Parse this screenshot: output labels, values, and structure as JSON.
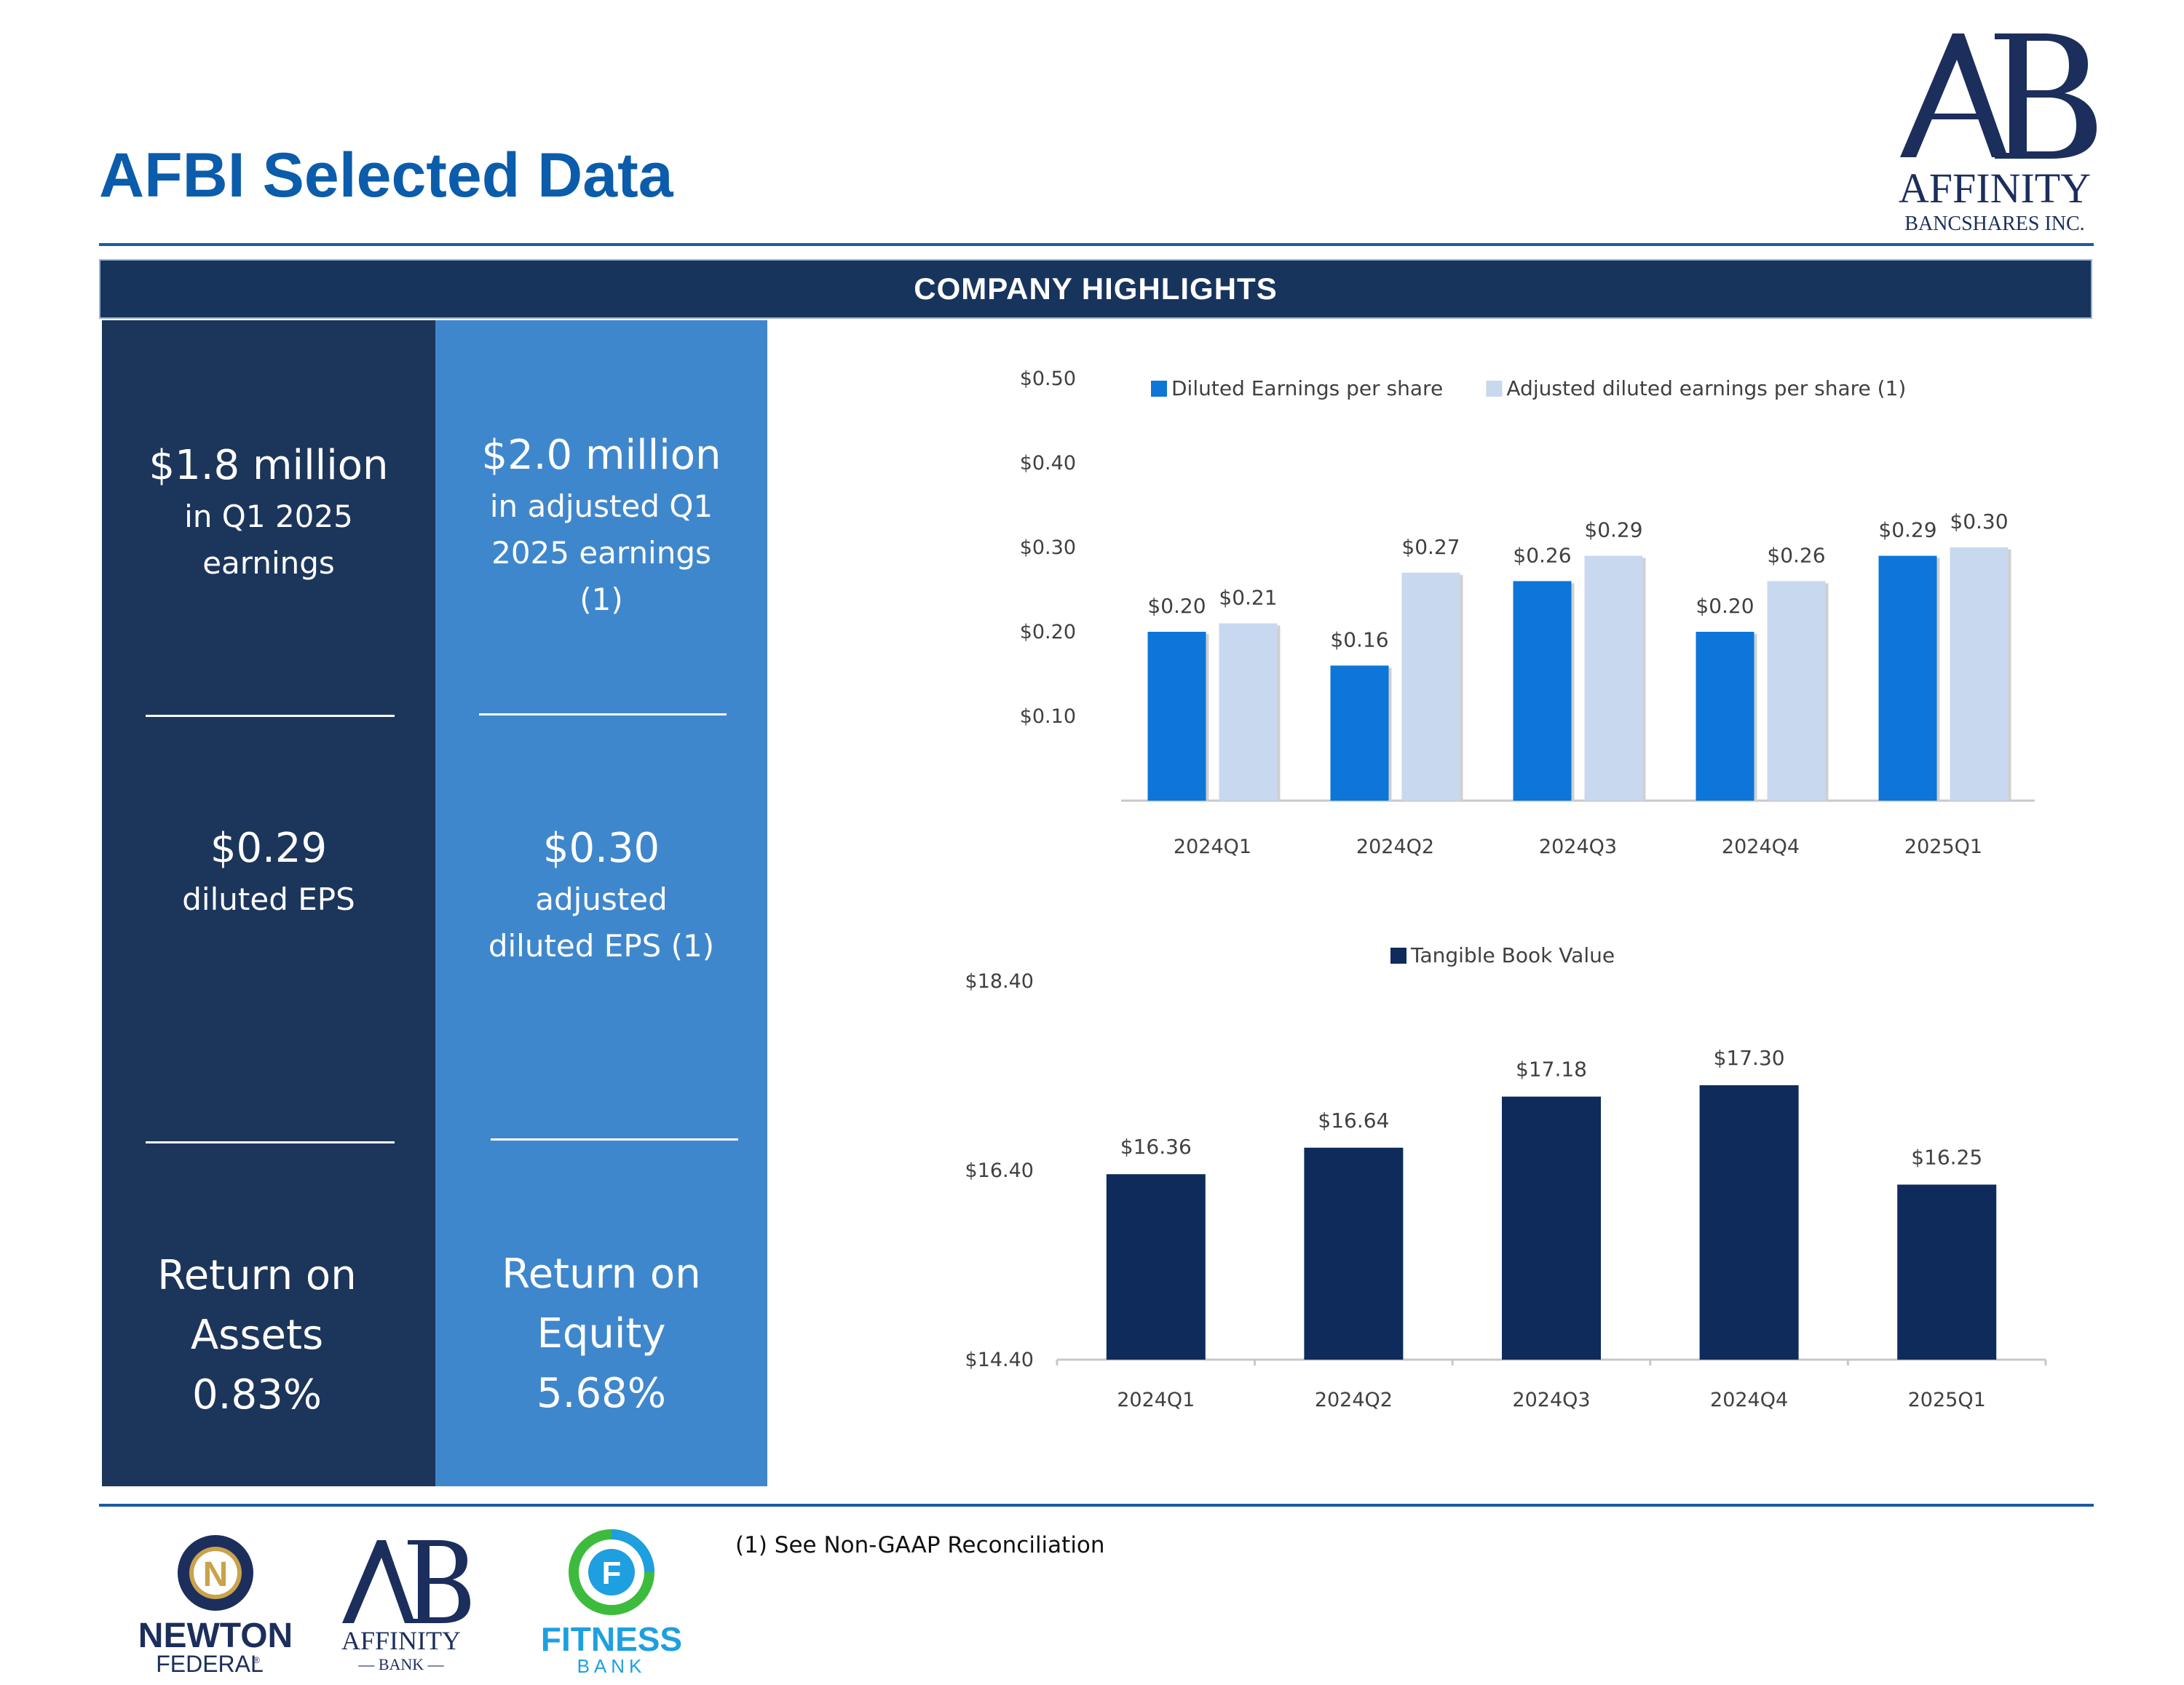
{
  "title": "AFBI Selected Data",
  "banner": "COMPANY HIGHLIGHTS",
  "brand": {
    "name": "AFFINITY",
    "sub": "BANCSHARES INC.",
    "color": "#1c2e5c"
  },
  "stats": {
    "col1": {
      "s1_big": "$1.8 million",
      "s1_l1": "in Q1 2025",
      "s1_l2": "earnings",
      "s2_big": "$0.29",
      "s2_l1": "diluted EPS",
      "s3_l1": "Return on",
      "s3_l2": "Assets",
      "s3_l3": "0.83%"
    },
    "col2": {
      "s1_big": "$2.0 million",
      "s1_l1": "in adjusted Q1",
      "s1_l2": "2025 earnings",
      "s1_l3": "(1)",
      "s2_big": "$0.30",
      "s2_l1": "adjusted",
      "s2_l2": "diluted EPS (1)",
      "s3_l1": "Return on",
      "s3_l2": "Equity",
      "s3_l3": "5.68%"
    }
  },
  "chart_data": [
    {
      "type": "bar",
      "categories": [
        "2024Q1",
        "2024Q2",
        "2024Q3",
        "2024Q4",
        "2025Q1"
      ],
      "series": [
        {
          "name": "Diluted Earnings per share",
          "values": [
            0.2,
            0.16,
            0.26,
            0.2,
            0.29
          ],
          "labels": [
            "$0.20",
            "$0.16",
            "$0.26",
            "$0.20",
            "$0.29"
          ],
          "color": "#0e76d8"
        },
        {
          "name": "Adjusted diluted earnings per share (1)",
          "values": [
            0.21,
            0.27,
            0.29,
            0.26,
            0.3
          ],
          "labels": [
            "$0.21",
            "$0.27",
            "$0.29",
            "$0.26",
            "$0.30"
          ],
          "color": "#c8d8ef"
        }
      ],
      "yticks": [
        "$0.10",
        "$0.20",
        "$0.30",
        "$0.40",
        "$0.50"
      ],
      "ytick_values": [
        0.1,
        0.2,
        0.3,
        0.4,
        0.5
      ],
      "ylim": [
        0,
        0.5
      ],
      "legend": "top"
    },
    {
      "type": "bar",
      "categories": [
        "2024Q1",
        "2024Q2",
        "2024Q3",
        "2024Q4",
        "2025Q1"
      ],
      "series": [
        {
          "name": "Tangible Book Value",
          "values": [
            16.36,
            16.64,
            17.18,
            17.3,
            16.25
          ],
          "labels": [
            "$16.36",
            "$16.64",
            "$17.18",
            "$17.30",
            "$16.25"
          ],
          "color": "#0f2b5c"
        }
      ],
      "yticks": [
        "$14.40",
        "$16.40",
        "$18.40"
      ],
      "ytick_values": [
        14.4,
        16.4,
        18.4
      ],
      "ylim": [
        14.4,
        18.4
      ],
      "legend": "top"
    }
  ],
  "footnote": "(1) See Non-GAAP Reconciliation",
  "logos": {
    "newton": {
      "letter": "N",
      "name": "NEWTON",
      "sub": "FEDERAL",
      "tm": "®"
    },
    "affinity_bank": {
      "name": "AFFINITY",
      "sub": "— BANK —"
    },
    "fitness": {
      "letter": "F",
      "name": "FITNESS",
      "sub": "BANK"
    }
  }
}
